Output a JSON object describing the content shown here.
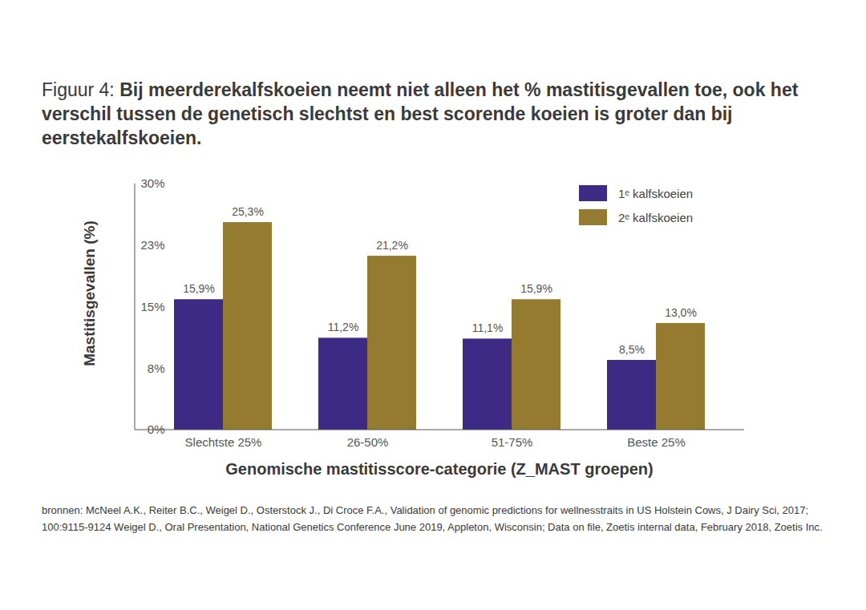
{
  "chart_data": {
    "type": "bar",
    "title": "Figuur 4: Bij meerderekalfskoeien neemt niet alleen het % mastitisgevallen toe, ook het verschil tussen de genetisch slechtst en best scorende koeien is groter dan bij eerstekalfskoeien.",
    "xlabel": "Genomische mastitisscore-categorie (Z_MAST groepen)",
    "ylabel": "Mastitisgevallen (%)",
    "categories": [
      "Slechtste 25%",
      "26-50%",
      "51-75%",
      "Beste 25%"
    ],
    "series": [
      {
        "name": "1ᵉ kalfskoeien",
        "color": "#3d2a84",
        "values": [
          15.9,
          11.2,
          11.1,
          8.5
        ],
        "value_labels": [
          "15,9%",
          "11,2%",
          "11,1%",
          "8,5%"
        ]
      },
      {
        "name": "2ᵉ kalfskoeien",
        "color": "#957b30",
        "values": [
          25.3,
          21.2,
          15.9,
          13.0
        ],
        "value_labels": [
          "25,3%",
          "21,2%",
          "15,9%",
          "13,0%"
        ]
      }
    ],
    "ylim": [
      0,
      30
    ],
    "yticks": [
      {
        "value": 0,
        "label": "0%"
      },
      {
        "value": 7.5,
        "label": "8%"
      },
      {
        "value": 15,
        "label": "15%"
      },
      {
        "value": 22.5,
        "label": "23%"
      },
      {
        "value": 30,
        "label": "30%"
      }
    ],
    "grid": false,
    "legend": "upper right",
    "data_labels": true,
    "source": "bronnen:  McNeel A.K., Reiter B.C., Weigel D., Osterstock J., Di Croce F.A., Validation of genomic predictions for wellnesstraits in US Holstein Cows, J Dairy Sci, 2017; 100:9115-9124     Weigel D., Oral Presentation, National Genetics Conference June 2019, Appleton, Wisconsin; Data on file, Zoetis internal data, February 2018, Zoetis Inc."
  }
}
